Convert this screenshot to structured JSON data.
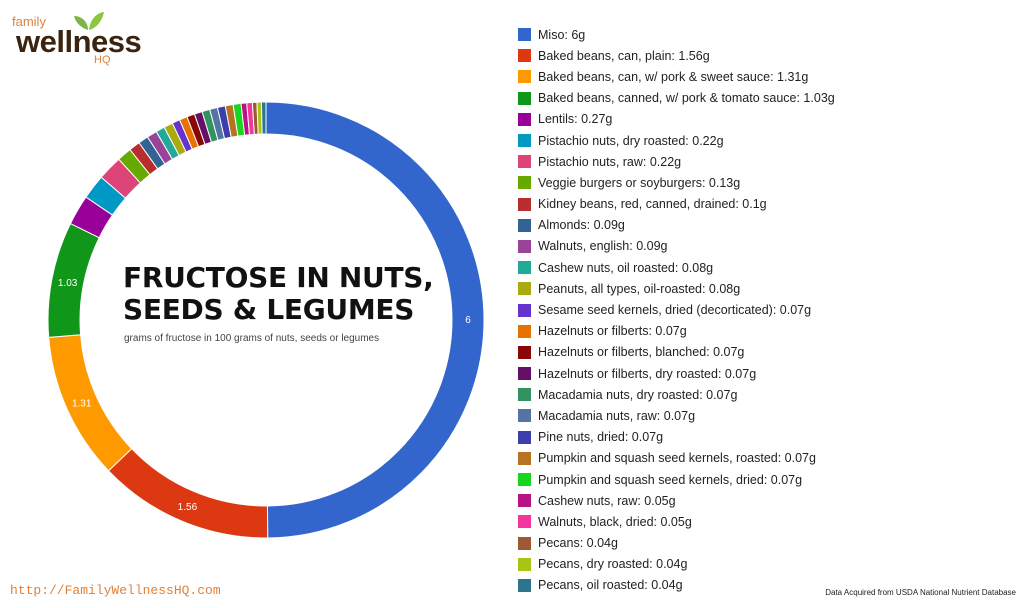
{
  "branding": {
    "logo_family": "family",
    "logo_wellness": "wellness",
    "logo_hq": "HQ",
    "url": "http://FamilyWellnessHQ.com",
    "source_note": "Data Acquired from USDA National Nutrient Database"
  },
  "center": {
    "title_line1": "FRUCTOSE IN NUTS,",
    "title_line2": "SEEDS & LEGUMES",
    "subtitle": "grams of fructose in 100 grams of nuts, seeds or legumes"
  },
  "chart_data": {
    "type": "pie",
    "variant": "donut",
    "title": "FRUCTOSE IN NUTS, SEEDS & LEGUMES",
    "subtitle": "grams of fructose in 100 grams of nuts, seeds or legumes",
    "legend_position": "right",
    "unit": "g",
    "slice_labels_shown": [
      "6",
      "1.56",
      "1.31",
      "1.03"
    ],
    "slices": [
      {
        "legend": "Miso: 6g",
        "value": 6,
        "color": "#3366cc"
      },
      {
        "legend": "Baked beans, can, plain: 1.56g",
        "value": 1.56,
        "color": "#dc3912"
      },
      {
        "legend": "Baked beans, can, w/ pork & sweet sauce: 1.31g",
        "value": 1.31,
        "color": "#ff9900"
      },
      {
        "legend": "Baked beans, canned, w/ pork & tomato sauce: 1.03g",
        "value": 1.03,
        "color": "#109618"
      },
      {
        "legend": "Lentils: 0.27g",
        "value": 0.27,
        "color": "#990099"
      },
      {
        "legend": "Pistachio nuts, dry roasted: 0.22g",
        "value": 0.22,
        "color": "#0099c6"
      },
      {
        "legend": "Pistachio nuts, raw: 0.22g",
        "value": 0.22,
        "color": "#dd4477"
      },
      {
        "legend": "Veggie burgers or soyburgers: 0.13g",
        "value": 0.13,
        "color": "#66aa00"
      },
      {
        "legend": "Kidney beans, red, canned, drained: 0.1g",
        "value": 0.1,
        "color": "#b82e2e"
      },
      {
        "legend": "Almonds: 0.09g",
        "value": 0.09,
        "color": "#316395"
      },
      {
        "legend": "Walnuts, english: 0.09g",
        "value": 0.09,
        "color": "#994499"
      },
      {
        "legend": "Cashew nuts, oil roasted: 0.08g",
        "value": 0.08,
        "color": "#22aa99"
      },
      {
        "legend": "Peanuts, all types, oil-roasted: 0.08g",
        "value": 0.08,
        "color": "#aaaa11"
      },
      {
        "legend": "Sesame seed kernels, dried (decorticated): 0.07g",
        "value": 0.07,
        "color": "#6633cc"
      },
      {
        "legend": "Hazelnuts or filberts: 0.07g",
        "value": 0.07,
        "color": "#e67300"
      },
      {
        "legend": "Hazelnuts or filberts, blanched: 0.07g",
        "value": 0.07,
        "color": "#8b0707"
      },
      {
        "legend": "Hazelnuts or filberts, dry roasted: 0.07g",
        "value": 0.07,
        "color": "#651067"
      },
      {
        "legend": "Macadamia nuts, dry roasted: 0.07g",
        "value": 0.07,
        "color": "#329262"
      },
      {
        "legend": "Macadamia nuts, raw: 0.07g",
        "value": 0.07,
        "color": "#5574a6"
      },
      {
        "legend": "Pine nuts, dried: 0.07g",
        "value": 0.07,
        "color": "#3b3eac"
      },
      {
        "legend": "Pumpkin and squash seed kernels, roasted: 0.07g",
        "value": 0.07,
        "color": "#b77322"
      },
      {
        "legend": "Pumpkin and squash seed kernels, dried: 0.07g",
        "value": 0.07,
        "color": "#16d620"
      },
      {
        "legend": "Cashew nuts, raw: 0.05g",
        "value": 0.05,
        "color": "#b91383"
      },
      {
        "legend": "Walnuts, black, dried: 0.05g",
        "value": 0.05,
        "color": "#f4359e"
      },
      {
        "legend": "Pecans: 0.04g",
        "value": 0.04,
        "color": "#9c5935"
      },
      {
        "legend": "Pecans, dry roasted: 0.04g",
        "value": 0.04,
        "color": "#a9c413"
      },
      {
        "legend": "Pecans, oil roasted: 0.04g",
        "value": 0.04,
        "color": "#2a778d"
      }
    ]
  }
}
